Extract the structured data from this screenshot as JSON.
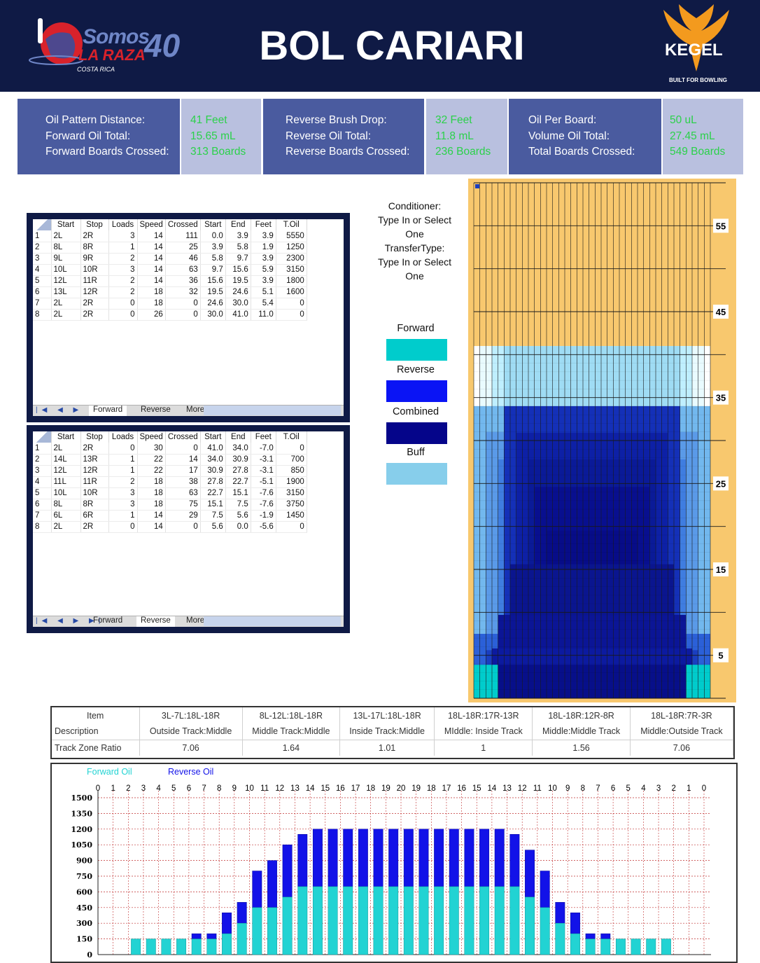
{
  "header": {
    "title": "BOL CARIARI",
    "logo_left": {
      "word": "Somos",
      "sub": "LA RAZA",
      "country": "COSTA RICA",
      "anniversary": "40"
    },
    "logo_right": {
      "word": "KEGEL",
      "tagline": "BUILT FOR BOWLING"
    }
  },
  "summary": [
    {
      "labels": [
        "Oil Pattern Distance:",
        "Forward Oil Total:",
        "Forward Boards Crossed:"
      ],
      "values": [
        "41 Feet",
        "15.65 mL",
        "313 Boards"
      ]
    },
    {
      "labels": [
        "Reverse Brush Drop:",
        "Reverse Oil Total:",
        "Reverse Boards Crossed:"
      ],
      "values": [
        "32 Feet",
        "11.8 mL",
        "236 Boards"
      ]
    },
    {
      "labels": [
        "Oil Per Board:",
        "Volume Oil Total:",
        "Total Boards Crossed:"
      ],
      "values": [
        "50 uL",
        "27.45 mL",
        "549 Boards"
      ]
    }
  ],
  "grid_headers": [
    "Start",
    "Stop",
    "Loads",
    "Speed",
    "Crossed",
    "Start",
    "End",
    "Feet",
    "T.Oil"
  ],
  "forward_rows": [
    [
      "1",
      "2L",
      "2R",
      "3",
      "14",
      "111",
      "0.0",
      "3.9",
      "3.9",
      "5550"
    ],
    [
      "2",
      "8L",
      "8R",
      "1",
      "14",
      "25",
      "3.9",
      "5.8",
      "1.9",
      "1250"
    ],
    [
      "3",
      "9L",
      "9R",
      "2",
      "14",
      "46",
      "5.8",
      "9.7",
      "3.9",
      "2300"
    ],
    [
      "4",
      "10L",
      "10R",
      "3",
      "14",
      "63",
      "9.7",
      "15.6",
      "5.9",
      "3150"
    ],
    [
      "5",
      "12L",
      "11R",
      "2",
      "14",
      "36",
      "15.6",
      "19.5",
      "3.9",
      "1800"
    ],
    [
      "6",
      "13L",
      "12R",
      "2",
      "18",
      "32",
      "19.5",
      "24.6",
      "5.1",
      "1600"
    ],
    [
      "7",
      "2L",
      "2R",
      "0",
      "18",
      "0",
      "24.6",
      "30.0",
      "5.4",
      "0"
    ],
    [
      "8",
      "2L",
      "2R",
      "0",
      "26",
      "0",
      "30.0",
      "41.0",
      "11.0",
      "0"
    ]
  ],
  "reverse_rows": [
    [
      "1",
      "2L",
      "2R",
      "0",
      "30",
      "0",
      "41.0",
      "34.0",
      "-7.0",
      "0"
    ],
    [
      "2",
      "14L",
      "13R",
      "1",
      "22",
      "14",
      "34.0",
      "30.9",
      "-3.1",
      "700"
    ],
    [
      "3",
      "12L",
      "12R",
      "1",
      "22",
      "17",
      "30.9",
      "27.8",
      "-3.1",
      "850"
    ],
    [
      "4",
      "11L",
      "11R",
      "2",
      "18",
      "38",
      "27.8",
      "22.7",
      "-5.1",
      "1900"
    ],
    [
      "5",
      "10L",
      "10R",
      "3",
      "18",
      "63",
      "22.7",
      "15.1",
      "-7.6",
      "3150"
    ],
    [
      "6",
      "8L",
      "8R",
      "3",
      "18",
      "75",
      "15.1",
      "7.5",
      "-7.6",
      "3750"
    ],
    [
      "7",
      "6L",
      "6R",
      "1",
      "14",
      "29",
      "7.5",
      "5.6",
      "-1.9",
      "1450"
    ],
    [
      "8",
      "2L",
      "2R",
      "0",
      "14",
      "0",
      "5.6",
      "0.0",
      "-5.6",
      "0"
    ]
  ],
  "tabs": [
    "Forward",
    "Reverse",
    "More"
  ],
  "tab_nav": "|◀ ◀ ▶ ▶|",
  "conditioner": {
    "lines": [
      "Conditioner:",
      "Type In or Select",
      "One",
      "TransferType:",
      "Type In or Select",
      "One"
    ]
  },
  "legend": [
    {
      "label": "Forward",
      "color": "#00cccc"
    },
    {
      "label": "Reverse",
      "color": "#0a14f5"
    },
    {
      "label": "Combined",
      "color": "#05058a"
    },
    {
      "label": "Buff",
      "color": "#87ceeb"
    }
  ],
  "lane": {
    "length_ft": 60,
    "oil_ft": 41,
    "boards": 39,
    "distance_labels": [
      "55",
      "45",
      "35",
      "25",
      "15",
      "5"
    ],
    "distance_values": [
      55,
      45,
      35,
      25,
      15,
      5
    ]
  },
  "ratio_table": {
    "row_labels": [
      "Item",
      "Description",
      "Track Zone Ratio"
    ],
    "columns": [
      {
        "item": "3L-7L:18L-18R",
        "description": "Outside Track:Middle",
        "ratio": "7.06"
      },
      {
        "item": "8L-12L:18L-18R",
        "description": "Middle Track:Middle",
        "ratio": "1.64"
      },
      {
        "item": "13L-17L:18L-18R",
        "description": "Inside Track:Middle",
        "ratio": "1.01"
      },
      {
        "item": "18L-18R:17R-13R",
        "description": "MIddle: Inside Track",
        "ratio": "1"
      },
      {
        "item": "18L-18R:12R-8R",
        "description": "Middle:Middle Track",
        "ratio": "1.56"
      },
      {
        "item": "18L-18R:7R-3R",
        "description": "Middle:Outside Track",
        "ratio": "7.06"
      }
    ]
  },
  "chart_data": {
    "type": "bar",
    "stacked": true,
    "legend_placement": "top-left",
    "grid": true,
    "categories": [
      "1",
      "2",
      "3",
      "4",
      "5",
      "6",
      "7",
      "8",
      "9",
      "10",
      "11",
      "12",
      "13",
      "14",
      "15",
      "16",
      "17",
      "18",
      "19",
      "19",
      "18",
      "17",
      "16",
      "15",
      "14",
      "13",
      "12",
      "11",
      "10",
      "9",
      "8",
      "7",
      "6",
      "5",
      "4",
      "3",
      "2"
    ],
    "x_tick_labels": [
      "0",
      "1",
      "2",
      "3",
      "4",
      "5",
      "6",
      "7",
      "8",
      "9",
      "10",
      "11",
      "12",
      "13",
      "14",
      "15",
      "16",
      "17",
      "18",
      "19",
      "20",
      "19",
      "18",
      "17",
      "16",
      "15",
      "14",
      "13",
      "12",
      "11",
      "10",
      "9",
      "8",
      "7",
      "6",
      "5",
      "4",
      "3",
      "2",
      "1",
      "0"
    ],
    "ylim": [
      0,
      1500
    ],
    "y_ticks": [
      0,
      150,
      300,
      450,
      600,
      750,
      900,
      1050,
      1200,
      1350,
      1500
    ],
    "series": [
      {
        "name": "Forward Oil",
        "color": "#22d3d3",
        "values": [
          0,
          150,
          150,
          150,
          150,
          150,
          150,
          200,
          300,
          450,
          450,
          550,
          650,
          650,
          650,
          650,
          650,
          650,
          650,
          650,
          650,
          650,
          650,
          650,
          650,
          650,
          650,
          550,
          450,
          300,
          200,
          150,
          150,
          150,
          150,
          150,
          150
        ]
      },
      {
        "name": "Reverse Oil",
        "color": "#1212e8",
        "values": [
          0,
          0,
          0,
          0,
          0,
          50,
          50,
          200,
          200,
          350,
          450,
          500,
          500,
          550,
          550,
          550,
          550,
          550,
          550,
          550,
          550,
          550,
          550,
          550,
          550,
          550,
          500,
          450,
          350,
          200,
          200,
          50,
          50,
          0,
          0,
          0,
          0
        ]
      }
    ]
  }
}
